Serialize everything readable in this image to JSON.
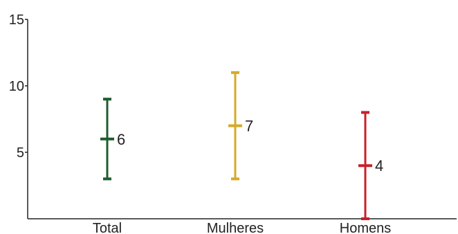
{
  "chart_data": {
    "type": "errorbar",
    "title": "",
    "xlabel": "",
    "ylabel": "",
    "ylim": [
      0,
      15
    ],
    "yticks": [
      5,
      10,
      15
    ],
    "categories": [
      "Total",
      "Mulheres",
      "Homens"
    ],
    "series": [
      {
        "values": [
          6,
          7,
          4
        ],
        "low": [
          3,
          3,
          0
        ],
        "high": [
          9,
          11,
          8
        ]
      }
    ],
    "data_labels": [
      "6",
      "7",
      "4"
    ],
    "colors": [
      "#1f5c2e",
      "#d4aa2a",
      "#c8202a"
    ],
    "grid": false,
    "legend": "none"
  }
}
